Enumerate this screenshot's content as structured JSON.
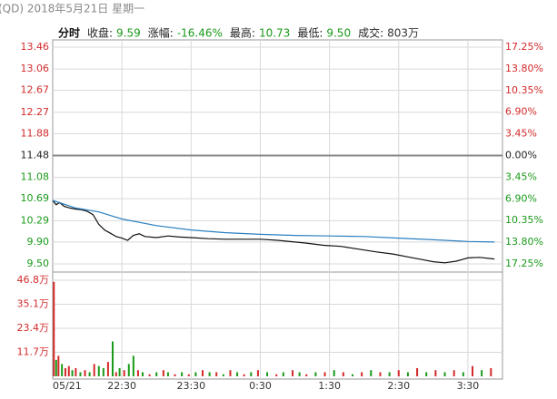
{
  "header": {
    "title": "(QD) 2018年5月21日 星期一",
    "mode": "分时",
    "info": [
      {
        "label": "收盘:",
        "value": "9.59",
        "color": "#1a9a1a"
      },
      {
        "label": "涨幅:",
        "value": "-16.46%",
        "color": "#1a9a1a"
      },
      {
        "label": "最高:",
        "value": "10.73",
        "color": "#1a9a1a"
      },
      {
        "label": "最低:",
        "value": "9.50",
        "color": "#1a9a1a"
      },
      {
        "label": "成交:",
        "value": "803万",
        "color": "#333333"
      }
    ]
  },
  "chart_data": [
    {
      "type": "line",
      "base": 11.48,
      "grid": true,
      "xlim": [
        0,
        390
      ],
      "xticks": [
        {
          "value": 0,
          "label": "05/21"
        },
        {
          "value": 60,
          "label": "22:30"
        },
        {
          "value": 120,
          "label": "23:30"
        },
        {
          "value": 180,
          "label": "0:30"
        },
        {
          "value": 240,
          "label": "1:30"
        },
        {
          "value": 300,
          "label": "2:30"
        },
        {
          "value": 360,
          "label": "3:30"
        }
      ],
      "ylim": [
        9.5,
        13.46
      ],
      "yticks": [
        13.46,
        13.06,
        12.67,
        12.27,
        11.88,
        11.48,
        11.08,
        10.69,
        10.29,
        {
          "value": 9.9,
          "label": "9.90"
        },
        {
          "value": 9.5,
          "label": "9.50"
        }
      ],
      "y2lim": [
        -17.25,
        17.25
      ],
      "y2ticks": [
        {
          "value": 17.25,
          "label": "17.25%"
        },
        {
          "value": 13.8,
          "label": "13.80%"
        },
        {
          "value": 10.35,
          "label": "10.35%"
        },
        {
          "value": 6.9,
          "label": "6.90%"
        },
        {
          "value": 3.45,
          "label": "3.45%"
        },
        {
          "value": 0,
          "label": "0.00%"
        },
        {
          "value": -3.45,
          "label": "3.45%"
        },
        {
          "value": -6.9,
          "label": "6.90%"
        },
        {
          "value": -10.35,
          "label": "10.35%"
        },
        {
          "value": -13.8,
          "label": "13.80%"
        },
        {
          "value": -17.25,
          "label": "17.25%"
        }
      ],
      "series": [
        {
          "color": "#111111",
          "x": [
            0,
            3,
            6,
            10,
            15,
            20,
            25,
            30,
            35,
            40,
            45,
            50,
            55,
            60,
            65,
            70,
            75,
            80,
            90,
            100,
            110,
            120,
            135,
            150,
            165,
            180,
            195,
            210,
            220,
            235,
            250,
            265,
            280,
            295,
            310,
            320,
            330,
            340,
            350,
            360,
            370,
            383
          ],
          "values": [
            10.66,
            10.58,
            10.62,
            10.55,
            10.52,
            10.5,
            10.49,
            10.46,
            10.4,
            10.22,
            10.12,
            10.06,
            10.0,
            9.97,
            9.93,
            10.02,
            10.05,
            10.0,
            9.98,
            10.01,
            9.99,
            9.98,
            9.96,
            9.95,
            9.95,
            9.95,
            9.93,
            9.9,
            9.88,
            9.84,
            9.82,
            9.77,
            9.72,
            9.68,
            9.62,
            9.58,
            9.54,
            9.52,
            9.55,
            9.61,
            9.62,
            9.59
          ]
        },
        {
          "color": "#2a7fc0",
          "x": [
            0,
            20,
            40,
            60,
            90,
            120,
            150,
            180,
            210,
            240,
            270,
            300,
            330,
            360,
            383
          ],
          "values": [
            10.66,
            10.52,
            10.45,
            10.32,
            10.2,
            10.12,
            10.07,
            10.04,
            10.02,
            10.01,
            10.0,
            9.97,
            9.94,
            9.91,
            9.9
          ]
        }
      ]
    },
    {
      "type": "bar",
      "grid": true,
      "xlim": [
        0,
        390
      ],
      "ylim": [
        0,
        46.8
      ],
      "yticks": [
        {
          "value": 46.8,
          "label": "46.8万"
        },
        {
          "value": 35.1,
          "label": "35.1万"
        },
        {
          "value": 23.4,
          "label": "23.4万"
        },
        {
          "value": 11.7,
          "label": "11.7万"
        }
      ],
      "x": [
        1,
        3,
        5,
        8,
        11,
        14,
        17,
        20,
        24,
        28,
        32,
        36,
        40,
        44,
        48,
        52,
        55,
        58,
        62,
        66,
        70,
        74,
        78,
        84,
        90,
        96,
        100,
        106,
        112,
        118,
        124,
        130,
        136,
        142,
        148,
        154,
        160,
        166,
        172,
        178,
        186,
        194,
        200,
        208,
        214,
        220,
        228,
        236,
        244,
        252,
        260,
        268,
        276,
        284,
        292,
        300,
        308,
        316,
        324,
        332,
        340,
        348,
        356,
        364,
        372,
        380
      ],
      "values": [
        46,
        8,
        10,
        6,
        4,
        5,
        3,
        4,
        2,
        3,
        2,
        6,
        5,
        4,
        7,
        17,
        2,
        4,
        3,
        6,
        10,
        3,
        2,
        1,
        2,
        3,
        2,
        1,
        2,
        1,
        2,
        3,
        2,
        2,
        1,
        3,
        2,
        1,
        2,
        3,
        2,
        1,
        2,
        3,
        2,
        1,
        2,
        2,
        3,
        2,
        1,
        2,
        3,
        2,
        2,
        3,
        2,
        4,
        2,
        3,
        2,
        3,
        2,
        5,
        3,
        4
      ],
      "colors": [
        "#d42a2a",
        "#1a9a1a",
        "#d42a2a",
        "#1a9a1a",
        "#d42a2a",
        "#d42a2a",
        "#1a9a1a",
        "#d42a2a",
        "#1a9a1a",
        "#d42a2a",
        "#1a9a1a",
        "#d42a2a",
        "#1a9a1a",
        "#1a9a1a",
        "#d42a2a",
        "#1a9a1a",
        "#d42a2a",
        "#1a9a1a",
        "#d42a2a",
        "#1a9a1a",
        "#1a9a1a",
        "#d42a2a",
        "#1a9a1a",
        "#d42a2a",
        "#1a9a1a",
        "#d42a2a",
        "#1a9a1a",
        "#d42a2a",
        "#1a9a1a",
        "#d42a2a",
        "#1a9a1a",
        "#d42a2a",
        "#1a9a1a",
        "#d42a2a",
        "#1a9a1a",
        "#d42a2a",
        "#1a9a1a",
        "#d42a2a",
        "#1a9a1a",
        "#d42a2a",
        "#1a9a1a",
        "#d42a2a",
        "#1a9a1a",
        "#d42a2a",
        "#1a9a1a",
        "#d42a2a",
        "#1a9a1a",
        "#d42a2a",
        "#1a9a1a",
        "#d42a2a",
        "#1a9a1a",
        "#d42a2a",
        "#1a9a1a",
        "#d42a2a",
        "#1a9a1a",
        "#d42a2a",
        "#1a9a1a",
        "#d42a2a",
        "#1a9a1a",
        "#d42a2a",
        "#1a9a1a",
        "#d42a2a",
        "#1a9a1a",
        "#d42a2a",
        "#1a9a1a",
        "#d42a2a"
      ]
    }
  ]
}
